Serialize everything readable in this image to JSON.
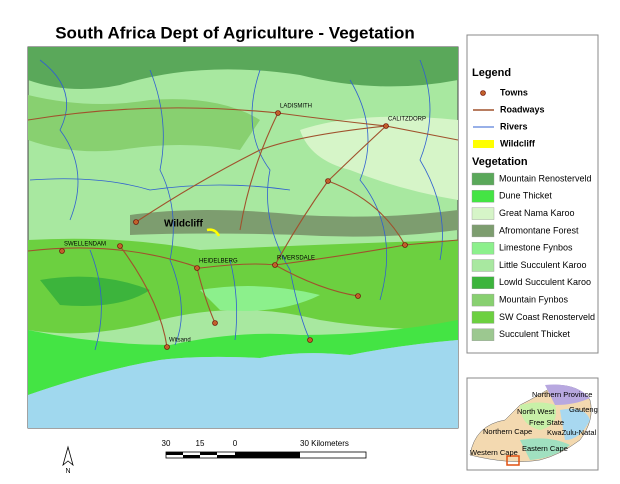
{
  "title": "South Africa Dept of Agriculture - Vegetation",
  "map": {
    "site": "Wildcliff",
    "towns": [
      "LADISMITH",
      "CALITZDORP",
      "SWELLENDAM",
      "HEIDELBERG",
      "RIVERSDALE",
      "Witsand"
    ]
  },
  "legend": {
    "title": "Legend",
    "items": [
      {
        "label": "Towns",
        "color": "#c0602a"
      },
      {
        "label": "Roadways",
        "color": "#a0522d"
      },
      {
        "label": "Rivers",
        "color": "#3060d0"
      },
      {
        "label": "Wildcliff",
        "color": "#ffff00"
      }
    ],
    "vegetation_title": "Vegetation",
    "vegetation": [
      {
        "label": "Mountain Renosterveld",
        "color": "#5aa85a"
      },
      {
        "label": "Dune Thicket",
        "color": "#44e444"
      },
      {
        "label": "Great Nama Karoo",
        "color": "#d6f5c8"
      },
      {
        "label": "Afromontane Forest",
        "color": "#7d9d6f"
      },
      {
        "label": "Limestone Fynbos",
        "color": "#8cf08c"
      },
      {
        "label": "Little Succulent Karoo",
        "color": "#a8e8a0"
      },
      {
        "label": "Lowld Succulent Karoo",
        "color": "#3cb43c"
      },
      {
        "label": "Mountain Fynbos",
        "color": "#88d070"
      },
      {
        "label": "SW Coast Renosterveld",
        "color": "#6cd040"
      },
      {
        "label": "Succulent Thicket",
        "color": "#9cc890"
      }
    ]
  },
  "inset": {
    "labels": [
      "Northern Province",
      "Gauteng",
      "North West",
      "Free State",
      "KwaZulu-Natal",
      "Northern Cape",
      "Eastern Cape",
      "Western Cape"
    ]
  },
  "scale_bar": {
    "labels": [
      "30",
      "15",
      "0",
      "30 Kilometers"
    ]
  },
  "north_arrow": "N"
}
